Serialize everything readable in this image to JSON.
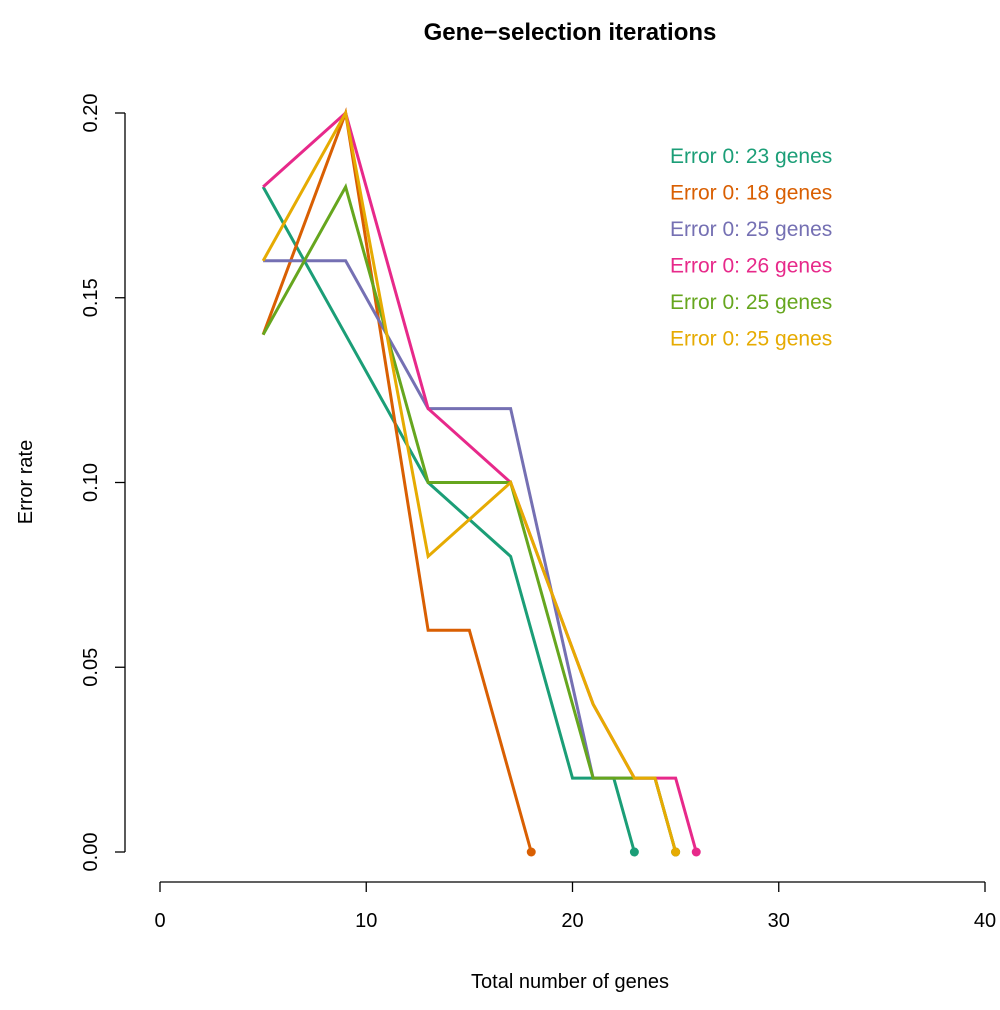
{
  "chart_data": {
    "type": "line",
    "title": "Gene−selection iterations",
    "xlabel": "Total number of genes",
    "ylabel": "Error rate",
    "xlim": [
      0,
      40
    ],
    "ylim": [
      0,
      0.2
    ],
    "x_ticks": [
      "0",
      "10",
      "20",
      "30",
      "40"
    ],
    "y_ticks": [
      "0.00",
      "0.05",
      "0.10",
      "0.15",
      "0.20"
    ],
    "x_tick_values": [
      0,
      10,
      20,
      30,
      40
    ],
    "y_tick_values": [
      0,
      0.05,
      0.1,
      0.15,
      0.2
    ],
    "grid": false,
    "legend_position": "top-right",
    "series": [
      {
        "name": "Error 0: 23 genes",
        "color": "#1B9E77",
        "x": [
          5,
          9,
          13,
          17,
          20,
          22,
          23
        ],
        "y": [
          0.18,
          0.14,
          0.1,
          0.08,
          0.02,
          0.02,
          0.0
        ]
      },
      {
        "name": "Error 0: 18 genes",
        "color": "#D95F02",
        "x": [
          5,
          9,
          13,
          15,
          18
        ],
        "y": [
          0.14,
          0.2,
          0.06,
          0.06,
          0.0
        ]
      },
      {
        "name": "Error 0: 25 genes",
        "color": "#7570B3",
        "x": [
          5,
          9,
          13,
          17,
          21,
          23,
          24,
          25
        ],
        "y": [
          0.16,
          0.16,
          0.12,
          0.12,
          0.02,
          0.02,
          0.02,
          0.0
        ]
      },
      {
        "name": "Error 0: 26 genes",
        "color": "#E7298A",
        "x": [
          5,
          9,
          13,
          17,
          21,
          23,
          25,
          26
        ],
        "y": [
          0.18,
          0.2,
          0.12,
          0.1,
          0.04,
          0.02,
          0.02,
          0.0
        ]
      },
      {
        "name": "Error 0: 25 genes",
        "color": "#66A61E",
        "x": [
          5,
          9,
          13,
          17,
          21,
          23,
          24,
          25
        ],
        "y": [
          0.14,
          0.18,
          0.1,
          0.1,
          0.02,
          0.02,
          0.02,
          0.0
        ]
      },
      {
        "name": "Error 0: 25 genes",
        "color": "#E6AB02",
        "x": [
          5,
          9,
          13,
          17,
          21,
          23,
          24,
          25
        ],
        "y": [
          0.16,
          0.2,
          0.08,
          0.1,
          0.04,
          0.02,
          0.02,
          0.0
        ]
      }
    ]
  }
}
